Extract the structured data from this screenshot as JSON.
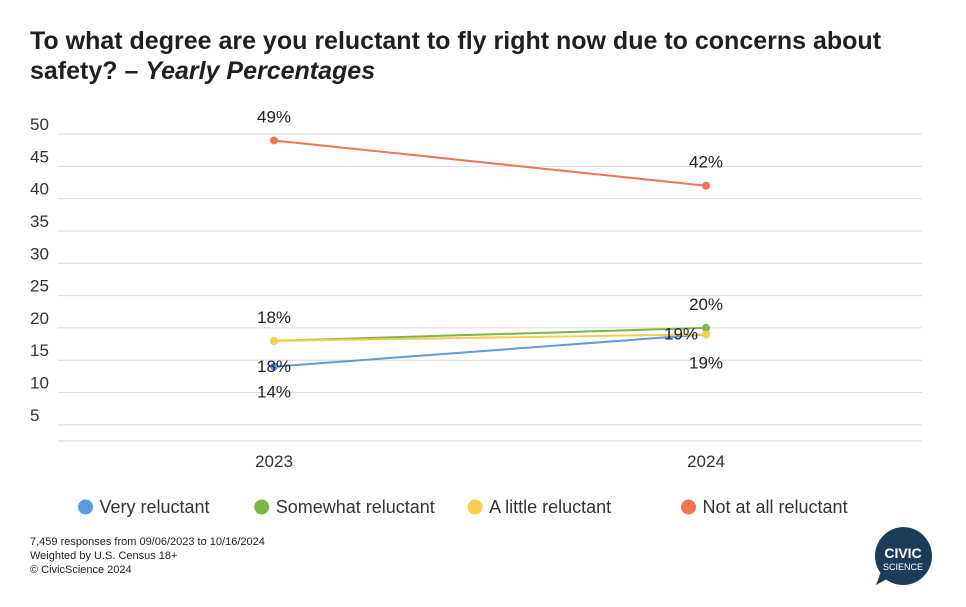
{
  "title": {
    "main": "To what degree are you reluctant to fly right now due to concerns about safety? –",
    "italic": "Yearly Percentages"
  },
  "chart_data": {
    "type": "line",
    "title": "To what degree are you reluctant to fly right now due to concerns about safety? – Yearly Percentages",
    "x": [
      "2023",
      "2024"
    ],
    "ylim": [
      2.5,
      50
    ],
    "yticks": [
      5,
      10,
      15,
      20,
      25,
      30,
      35,
      40,
      45,
      50
    ],
    "grid": true,
    "legend_position": "bottom",
    "series": [
      {
        "name": "Very reluctant",
        "color": "#5B9BE0",
        "values": [
          14,
          19
        ],
        "labels": [
          "14%",
          "19%"
        ]
      },
      {
        "name": "Somewhat reluctant",
        "color": "#7AB648",
        "values": [
          18,
          20
        ],
        "labels": [
          "18%",
          "20%"
        ]
      },
      {
        "name": "A little reluctant",
        "color": "#F5CD50",
        "values": [
          18,
          19
        ],
        "labels": [
          "18%",
          "19%"
        ]
      },
      {
        "name": "Not at all reluctant",
        "color": "#F07552",
        "values": [
          49,
          42
        ],
        "labels": [
          "49%",
          "42%"
        ]
      }
    ]
  },
  "footnote": {
    "line1": "7,459 responses from 09/06/2023 to 10/16/2024",
    "line2": "Weighted by U.S. Census 18+",
    "line3": "© CivicScience 2024"
  },
  "logo": {
    "top": "CIVIC",
    "bottom": "SCIENCE",
    "color": "#1F3B5A"
  }
}
